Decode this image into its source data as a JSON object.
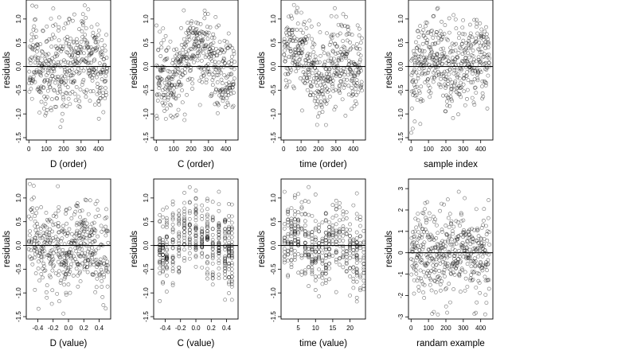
{
  "chart_data": [
    {
      "type": "scatter",
      "xlabel": "D (order)",
      "ylabel": "residuals",
      "ylim": [
        -1.55,
        1.4
      ],
      "yticks": [
        -1.5,
        -1.0,
        -0.5,
        0.0,
        0.5,
        1.0
      ],
      "ytick_labels": [
        "-1.5",
        "-1.0",
        "-0.5",
        "0.0",
        "0.5",
        "1.0"
      ],
      "xlim": [
        -15,
        470
      ],
      "xticks": [
        0,
        100,
        200,
        300,
        400
      ],
      "xtick_labels": [
        "0",
        "100",
        "200",
        "300",
        "400"
      ],
      "reference_line_y": 0,
      "n_points": 450,
      "x_spacing": "index",
      "jitter": "none",
      "y_range": [
        -1.45,
        1.3
      ],
      "y_sd": 0.45,
      "pattern": [
        [
          0,
          0.1
        ],
        [
          120,
          -0.15
        ],
        [
          250,
          0.05
        ],
        [
          320,
          0.3
        ],
        [
          380,
          0.1
        ],
        [
          460,
          -0.2
        ]
      ],
      "marker": "open-circle"
    },
    {
      "type": "scatter",
      "xlabel": "C (order)",
      "ylabel": "residuals",
      "ylim": [
        -1.55,
        1.4
      ],
      "yticks": [
        -1.5,
        -1.0,
        -0.5,
        0.0,
        0.5,
        1.0
      ],
      "ytick_labels": [
        "-1.5",
        "-1.0",
        "-0.5",
        "0.0",
        "0.5",
        "1.0"
      ],
      "xlim": [
        -15,
        470
      ],
      "xticks": [
        0,
        100,
        200,
        300,
        400
      ],
      "xtick_labels": [
        "0",
        "100",
        "200",
        "300",
        "400"
      ],
      "reference_line_y": 0,
      "n_points": 450,
      "x_spacing": "index",
      "jitter": "none",
      "y_range": [
        -1.45,
        1.3
      ],
      "y_sd": 0.4,
      "pattern": [
        [
          0,
          -0.2
        ],
        [
          80,
          -0.35
        ],
        [
          150,
          0.1
        ],
        [
          200,
          0.45
        ],
        [
          280,
          0.35
        ],
        [
          340,
          0.0
        ],
        [
          460,
          -0.3
        ]
      ],
      "marker": "open-circle"
    },
    {
      "type": "scatter",
      "xlabel": "time (order)",
      "ylabel": "residuals",
      "ylim": [
        -1.55,
        1.4
      ],
      "yticks": [
        -1.5,
        -1.0,
        -0.5,
        0.0,
        0.5,
        1.0
      ],
      "ytick_labels": [
        "-1.5",
        "-1.0",
        "-0.5",
        "0.0",
        "0.5",
        "1.0"
      ],
      "xlim": [
        -15,
        470
      ],
      "xticks": [
        0,
        100,
        200,
        300,
        400
      ],
      "xtick_labels": [
        "0",
        "100",
        "200",
        "300",
        "400"
      ],
      "reference_line_y": 0,
      "n_points": 450,
      "x_spacing": "index",
      "jitter": "none",
      "y_range": [
        -1.45,
        1.3
      ],
      "y_sd": 0.42,
      "pattern": [
        [
          0,
          0.2
        ],
        [
          70,
          0.45
        ],
        [
          130,
          0.1
        ],
        [
          200,
          -0.4
        ],
        [
          270,
          0.0
        ],
        [
          340,
          0.2
        ],
        [
          460,
          -0.2
        ]
      ],
      "marker": "open-circle"
    },
    {
      "type": "scatter",
      "xlabel": "sample index",
      "ylabel": "residuals",
      "ylim": [
        -1.55,
        1.4
      ],
      "yticks": [
        -1.5,
        -1.0,
        -0.5,
        0.0,
        0.5,
        1.0
      ],
      "ytick_labels": [
        "-1.5",
        "-1.0",
        "-0.5",
        "0.0",
        "0.5",
        "1.0"
      ],
      "xlim": [
        -15,
        470
      ],
      "xticks": [
        0,
        100,
        200,
        300,
        400
      ],
      "xtick_labels": [
        "0",
        "100",
        "200",
        "300",
        "400"
      ],
      "reference_line_y": 0,
      "n_points": 450,
      "x_spacing": "index",
      "jitter": "none",
      "y_range": [
        -1.45,
        1.3
      ],
      "y_sd": 0.45,
      "pattern": [
        [
          0,
          -0.4
        ],
        [
          40,
          0.0
        ],
        [
          130,
          0.35
        ],
        [
          220,
          -0.1
        ],
        [
          330,
          0.15
        ],
        [
          460,
          0.05
        ]
      ],
      "marker": "open-circle"
    },
    {
      "type": "scatter",
      "xlabel": "D (value)",
      "ylabel": "residuals",
      "ylim": [
        -1.55,
        1.4
      ],
      "yticks": [
        -1.5,
        -1.0,
        -0.5,
        0.0,
        0.5,
        1.0
      ],
      "ytick_labels": [
        "-1.5",
        "-1.0",
        "-0.5",
        "0.0",
        "0.5",
        "1.0"
      ],
      "xlim": [
        -0.55,
        0.55
      ],
      "xticks": [
        -0.4,
        -0.2,
        0.0,
        0.2,
        0.4
      ],
      "xtick_labels": [
        "-0.4",
        "-0.2",
        "0.0",
        "0.2",
        "0.4"
      ],
      "reference_line_y": 0,
      "n_points": 450,
      "x_spacing": "uniform",
      "x_range": [
        -0.52,
        0.52
      ],
      "jitter": "none",
      "y_range": [
        -1.45,
        1.3
      ],
      "y_sd": 0.45,
      "pattern": [
        [
          -0.5,
          0.3
        ],
        [
          -0.3,
          -0.1
        ],
        [
          0.0,
          -0.2
        ],
        [
          0.15,
          0.2
        ],
        [
          0.3,
          -0.05
        ],
        [
          0.5,
          -0.3
        ]
      ],
      "marker": "open-circle"
    },
    {
      "type": "scatter",
      "xlabel": "C (value)",
      "ylabel": "residuals",
      "ylim": [
        -1.55,
        1.4
      ],
      "yticks": [
        -1.5,
        -1.0,
        -0.5,
        0.0,
        0.5,
        1.0
      ],
      "ytick_labels": [
        "-1.5",
        "-1.0",
        "-0.5",
        "0.0",
        "0.5",
        "1.0"
      ],
      "xlim": [
        -0.55,
        0.55
      ],
      "xticks": [
        -0.4,
        -0.2,
        0.0,
        0.2,
        0.4
      ],
      "xtick_labels": [
        "-0.4",
        "-0.2",
        "0.0",
        "0.2",
        "0.4"
      ],
      "reference_line_y": 0,
      "n_points": 450,
      "x_spacing": "discrete",
      "x_levels": [
        -0.47,
        -0.43,
        -0.38,
        -0.3,
        -0.22,
        -0.15,
        -0.08,
        0.0,
        0.08,
        0.15,
        0.22,
        0.3,
        0.38,
        0.43,
        0.47
      ],
      "jitter": "none",
      "y_range": [
        -1.45,
        1.3
      ],
      "y_sd": 0.4,
      "pattern": [
        [
          -0.5,
          -0.3
        ],
        [
          -0.3,
          0.1
        ],
        [
          -0.1,
          0.4
        ],
        [
          0.1,
          0.25
        ],
        [
          0.3,
          0.0
        ],
        [
          0.5,
          -0.25
        ]
      ],
      "marker": "open-circle"
    },
    {
      "type": "scatter",
      "xlabel": "time (value)",
      "ylabel": "residuals",
      "ylim": [
        -1.55,
        1.4
      ],
      "yticks": [
        -1.5,
        -1.0,
        -0.5,
        0.0,
        0.5,
        1.0
      ],
      "ytick_labels": [
        "-1.5",
        "-1.0",
        "-0.5",
        "0.0",
        "0.5",
        "1.0"
      ],
      "xlim": [
        0,
        24.5
      ],
      "xticks": [
        5,
        10,
        15,
        20
      ],
      "xtick_labels": [
        "5",
        "10",
        "15",
        "20"
      ],
      "reference_line_y": 0,
      "n_points": 450,
      "x_spacing": "discrete",
      "x_levels": [
        1,
        2,
        3,
        4,
        5,
        6,
        7,
        8,
        9,
        10,
        11,
        12,
        13,
        14,
        15,
        16,
        17,
        18,
        19,
        20,
        21,
        22,
        23,
        24
      ],
      "jitter": "none",
      "y_range": [
        -1.45,
        1.3
      ],
      "y_sd": 0.42,
      "pattern": [
        [
          1,
          0.0
        ],
        [
          5,
          0.4
        ],
        [
          9,
          -0.1
        ],
        [
          12,
          -0.2
        ],
        [
          16,
          0.25
        ],
        [
          20,
          0.0
        ],
        [
          24,
          -0.3
        ]
      ],
      "marker": "open-circle"
    },
    {
      "type": "scatter",
      "xlabel": "randam example",
      "ylabel": "residuals",
      "ylim": [
        -3.1,
        3.45
      ],
      "yticks": [
        -3,
        -2,
        -1,
        0,
        1,
        2,
        3
      ],
      "ytick_labels": [
        "-3",
        "-2",
        "-1",
        "0",
        "1",
        "2",
        "3"
      ],
      "xlim": [
        -15,
        470
      ],
      "xticks": [
        0,
        100,
        200,
        300,
        400
      ],
      "xtick_labels": [
        "0",
        "100",
        "200",
        "300",
        "400"
      ],
      "reference_line_y": 0,
      "n_points": 450,
      "x_spacing": "index",
      "jitter": "none",
      "y_range": [
        -2.9,
        3.2
      ],
      "y_sd": 1.0,
      "pattern": [
        [
          0,
          0.0
        ],
        [
          460,
          0.0
        ]
      ],
      "marker": "open-circle"
    }
  ]
}
